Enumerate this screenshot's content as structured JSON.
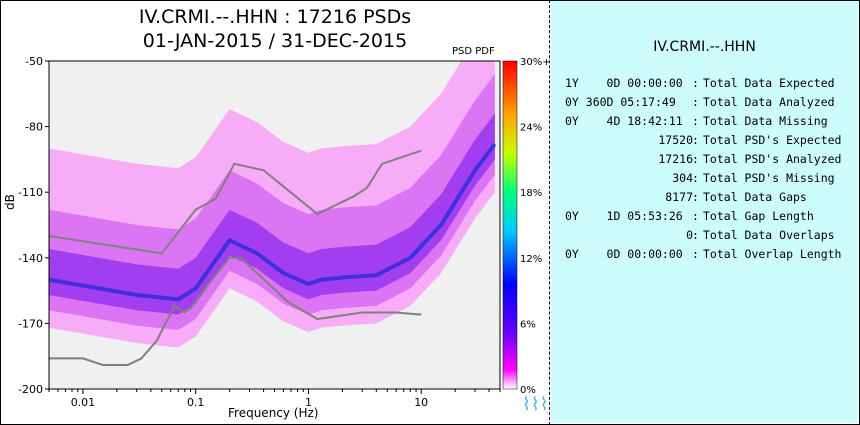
{
  "titles": {
    "line1": "IV.CRMI.--.HHN : 17216 PSDs",
    "line2": "01-JAN-2015 / 31-DEC-2015",
    "psd_pdf": "PSD PDF",
    "station": "IV.CRMI.--.HHN"
  },
  "chart_data": {
    "type": "heatmap",
    "xlabel": "Frequency (Hz)",
    "ylabel": "dB",
    "x_scale": "log",
    "xlim": [
      0.005,
      50
    ],
    "ylim": [
      -200,
      -50
    ],
    "x_ticks": [
      0.01,
      0.1,
      1,
      10
    ],
    "x_tick_labels": [
      "0.01",
      "0.1",
      "1",
      "10"
    ],
    "y_ticks": [
      -200,
      -170,
      -140,
      -110,
      -80,
      -50
    ],
    "y_tick_labels": [
      "-200",
      "-170",
      "-140",
      "-110",
      "-80",
      "-50"
    ],
    "colorbar": {
      "labels": [
        "30%+",
        "24%",
        "18%",
        "12%",
        "6%",
        "0%"
      ],
      "colors": [
        "#ff0000",
        "#ff8a00",
        "#ffff00",
        "#00ff00",
        "#00ffff",
        "#0000ff",
        "#ff00ff",
        "#ffffff"
      ]
    },
    "series": [
      {
        "role": "high-noise-model",
        "color": "#808080",
        "points": [
          [
            0.005,
            -130
          ],
          [
            0.05,
            -138
          ],
          [
            0.1,
            -118
          ],
          [
            0.15,
            -113
          ],
          [
            0.22,
            -97
          ],
          [
            0.4,
            -100
          ],
          [
            1.2,
            -120
          ],
          [
            2.5,
            -112
          ],
          [
            3.3,
            -108
          ],
          [
            4.5,
            -97
          ],
          [
            10,
            -91
          ]
        ]
      },
      {
        "role": "low-noise-model",
        "color": "#808080",
        "points": [
          [
            0.005,
            -186
          ],
          [
            0.01,
            -186
          ],
          [
            0.015,
            -189
          ],
          [
            0.025,
            -189
          ],
          [
            0.033,
            -186
          ],
          [
            0.045,
            -178
          ],
          [
            0.065,
            -162
          ],
          [
            0.08,
            -165
          ],
          [
            0.09,
            -163
          ],
          [
            0.13,
            -152
          ],
          [
            0.2,
            -140
          ],
          [
            0.25,
            -140
          ],
          [
            0.35,
            -147
          ],
          [
            0.65,
            -160
          ],
          [
            1.2,
            -168
          ],
          [
            3,
            -165
          ],
          [
            6,
            -165
          ],
          [
            10,
            -166
          ]
        ]
      }
    ],
    "mode_curve": [
      [
        0.005,
        -150
      ],
      [
        0.03,
        -157
      ],
      [
        0.07,
        -159
      ],
      [
        0.1,
        -154
      ],
      [
        0.2,
        -132
      ],
      [
        0.35,
        -138
      ],
      [
        0.6,
        -147
      ],
      [
        1,
        -152
      ],
      [
        1.3,
        -150
      ],
      [
        2,
        -149
      ],
      [
        4,
        -148
      ],
      [
        8,
        -140
      ],
      [
        15,
        -125
      ],
      [
        30,
        -100
      ],
      [
        45,
        -88
      ]
    ]
  },
  "stats": {
    "rows": [
      {
        "value": "1Y    0D 00:00:00",
        "label": "Total Data Expected"
      },
      {
        "value": "0Y 360D 05:17:49",
        "label": "Total Data Analyzed"
      },
      {
        "value": "0Y    4D 18:42:11",
        "label": "Total Data Missing"
      },
      {
        "value": "17520",
        "label": "Total PSD's Expected"
      },
      {
        "value": "17216",
        "label": "Total PSD's Analyzed"
      },
      {
        "value": "304",
        "label": "Total PSD's Missing"
      },
      {
        "value": "8177",
        "label": "Total Data Gaps"
      },
      {
        "value": "0Y    1D 05:53:26",
        "label": "Total Gap Length"
      },
      {
        "value": "0",
        "label": "Total Data Overlaps"
      },
      {
        "value": "0Y    0D 00:00:00",
        "label": "Total Overlap Length"
      }
    ]
  }
}
